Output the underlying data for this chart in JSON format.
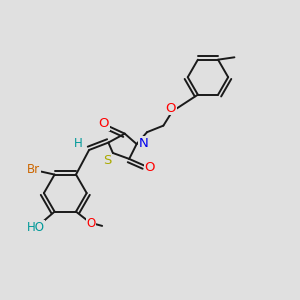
{
  "bg_color": "#e0e0e0",
  "bond_color": "#1a1a1a",
  "bond_width": 1.4,
  "dbo": 0.012,
  "atom_colors": {
    "O": "#ff0000",
    "N": "#0000ee",
    "S": "#aaaa00",
    "Br": "#cc6600",
    "H_teal": "#009999",
    "C": "#1a1a1a"
  },
  "fs": 8.5
}
